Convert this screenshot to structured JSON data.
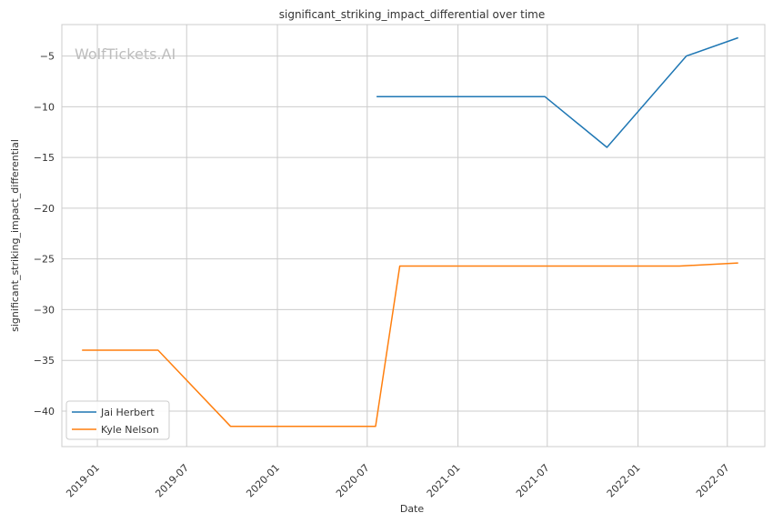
{
  "chart_data": {
    "type": "line",
    "title": "significant_striking_impact_differential over time",
    "xlabel": "Date",
    "ylabel": "significant_striking_impact_differential",
    "watermark": "WolfTickets.AI",
    "x_ticks": [
      "2019-01",
      "2019-07",
      "2020-01",
      "2020-07",
      "2021-01",
      "2021-07",
      "2022-01",
      "2022-07"
    ],
    "y_ticks": [
      "−5",
      "−10",
      "−15",
      "−20",
      "−25",
      "−30",
      "−35",
      "−40"
    ],
    "ylim": [
      -43.5,
      -1.9
    ],
    "xlim": [
      "2018-10-21",
      "2022-09-15"
    ],
    "grid": true,
    "legend_position": "lower left",
    "series": [
      {
        "name": "Jai Herbert",
        "color": "#1f77b4",
        "points": [
          {
            "x": "2020-07-20",
            "y": -9.0
          },
          {
            "x": "2021-06-26",
            "y": -9.0
          },
          {
            "x": "2021-10-30",
            "y": -14.0
          },
          {
            "x": "2022-04-09",
            "y": -5.0
          },
          {
            "x": "2022-07-23",
            "y": -3.2
          }
        ]
      },
      {
        "name": "Kyle Nelson",
        "color": "#ff7f0e",
        "points": [
          {
            "x": "2018-12-01",
            "y": -34.0
          },
          {
            "x": "2019-05-04",
            "y": -34.0
          },
          {
            "x": "2019-09-28",
            "y": -41.5
          },
          {
            "x": "2020-07-18",
            "y": -41.5
          },
          {
            "x": "2020-09-05",
            "y": -25.7
          },
          {
            "x": "2022-03-26",
            "y": -25.7
          },
          {
            "x": "2022-07-23",
            "y": -25.4
          }
        ]
      }
    ]
  }
}
